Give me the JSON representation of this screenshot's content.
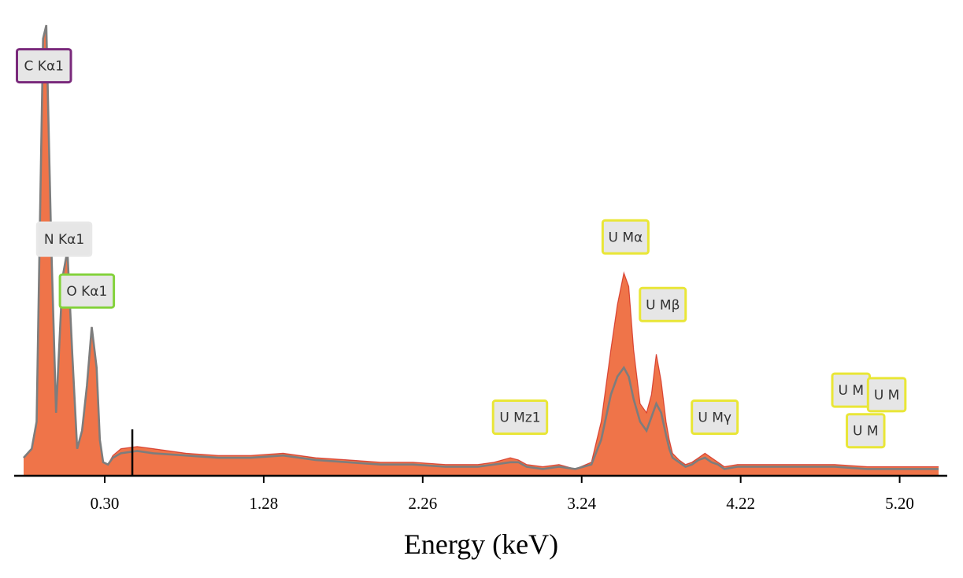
{
  "chart_data": {
    "type": "area",
    "title": "",
    "xlabel": "Energy (keV)",
    "ylabel": "",
    "xlim": [
      -0.2,
      5.44
    ],
    "ylim": [
      0,
      100
    ],
    "xticks": [
      0.3,
      1.28,
      2.26,
      3.24,
      4.22,
      5.2
    ],
    "xtick_labels": [
      "0.30",
      "1.28",
      "2.26",
      "3.24",
      "4.22",
      "5.20"
    ],
    "grid": false,
    "legend": "none",
    "colors": {
      "fill": "#ef7449",
      "outline": "#7d7d7d",
      "red_trace": "#cc1a10",
      "axis": "#000000",
      "peak_box": "#e6e6e6",
      "marker": "#000000"
    },
    "marker_x": 0.47,
    "series": [
      {
        "x": [
          -0.2,
          -0.15,
          -0.12,
          -0.1,
          -0.08,
          -0.06,
          -0.03,
          0,
          0.04,
          0.07,
          0.1,
          0.13,
          0.16,
          0.19,
          0.22,
          0.25,
          0.27,
          0.29,
          0.32,
          0.35,
          0.4,
          0.5,
          0.6,
          0.8,
          1.0,
          1.2,
          1.4,
          1.6,
          1.8,
          2.0,
          2.2,
          2.4,
          2.6,
          2.7,
          2.8,
          2.85,
          2.9,
          3.0,
          3.1,
          3.2,
          3.3,
          3.36,
          3.42,
          3.46,
          3.5,
          3.53,
          3.56,
          3.6,
          3.64,
          3.67,
          3.7,
          3.73,
          3.76,
          3.78,
          3.8,
          3.84,
          3.88,
          3.92,
          3.96,
          4.0,
          4.04,
          4.08,
          4.12,
          4.2,
          4.4,
          4.6,
          4.8,
          5.0,
          5.2,
          5.44
        ],
        "values": [
          4,
          6,
          12,
          55,
          97,
          100,
          52,
          14,
          44,
          50,
          27,
          6,
          10,
          20,
          33,
          24,
          8,
          3,
          2.5,
          4.5,
          6,
          6.5,
          6,
          5,
          4.5,
          4.5,
          5,
          4,
          3.5,
          3,
          3,
          2.5,
          2.5,
          3,
          4,
          3.5,
          2.5,
          2,
          2.5,
          1.5,
          3,
          12,
          28,
          38,
          45,
          42,
          28,
          16,
          14,
          18,
          27,
          21,
          12,
          8,
          5,
          3.5,
          2.5,
          3,
          4,
          5,
          4,
          3,
          2,
          2.5,
          2.5,
          2.5,
          2.5,
          2,
          2,
          2
        ],
        "outline_values": [
          4,
          6,
          12,
          55,
          97,
          100,
          52,
          14,
          44,
          50,
          27,
          6,
          10,
          20,
          33,
          24,
          8,
          3,
          2.5,
          4,
          5,
          5.5,
          5,
          4.5,
          4,
          4,
          4.5,
          3.5,
          3,
          2.5,
          2.5,
          2,
          2,
          2.5,
          3,
          3,
          2,
          1.5,
          2,
          1.5,
          2.5,
          8,
          18,
          22,
          24,
          22,
          17,
          12,
          10,
          13,
          16,
          14,
          9,
          6,
          4,
          3,
          2,
          2.5,
          3.5,
          4,
          3,
          2.5,
          1.5,
          2,
          2,
          2,
          2,
          1.5,
          1.5,
          1.5
        ]
      }
    ],
    "annotations": [
      {
        "text": "C Kα1",
        "x": -0.075,
        "y": 91,
        "border": "#7a2a7c"
      },
      {
        "text": "N Kα1",
        "x": 0.05,
        "y": 52.5,
        "border": "#e8e8e8"
      },
      {
        "text": "O Kα1",
        "x": 0.19,
        "y": 41,
        "border": "#84d23c"
      },
      {
        "text": "U Mz1",
        "x": 2.86,
        "y": 13,
        "border": "#e9e637"
      },
      {
        "text": "U Mα",
        "x": 3.51,
        "y": 53,
        "border": "#e9e637"
      },
      {
        "text": "U Mβ",
        "x": 3.74,
        "y": 38,
        "border": "#e9e637"
      },
      {
        "text": "U Mγ",
        "x": 4.06,
        "y": 13,
        "border": "#e9e637"
      },
      {
        "text": "U M",
        "x": 4.9,
        "y": 19,
        "border": "#e9e637"
      },
      {
        "text": "U M",
        "x": 4.99,
        "y": 10,
        "border": "#e9e637"
      },
      {
        "text": "U M",
        "x": 5.12,
        "y": 18,
        "border": "#e9e637"
      }
    ]
  }
}
